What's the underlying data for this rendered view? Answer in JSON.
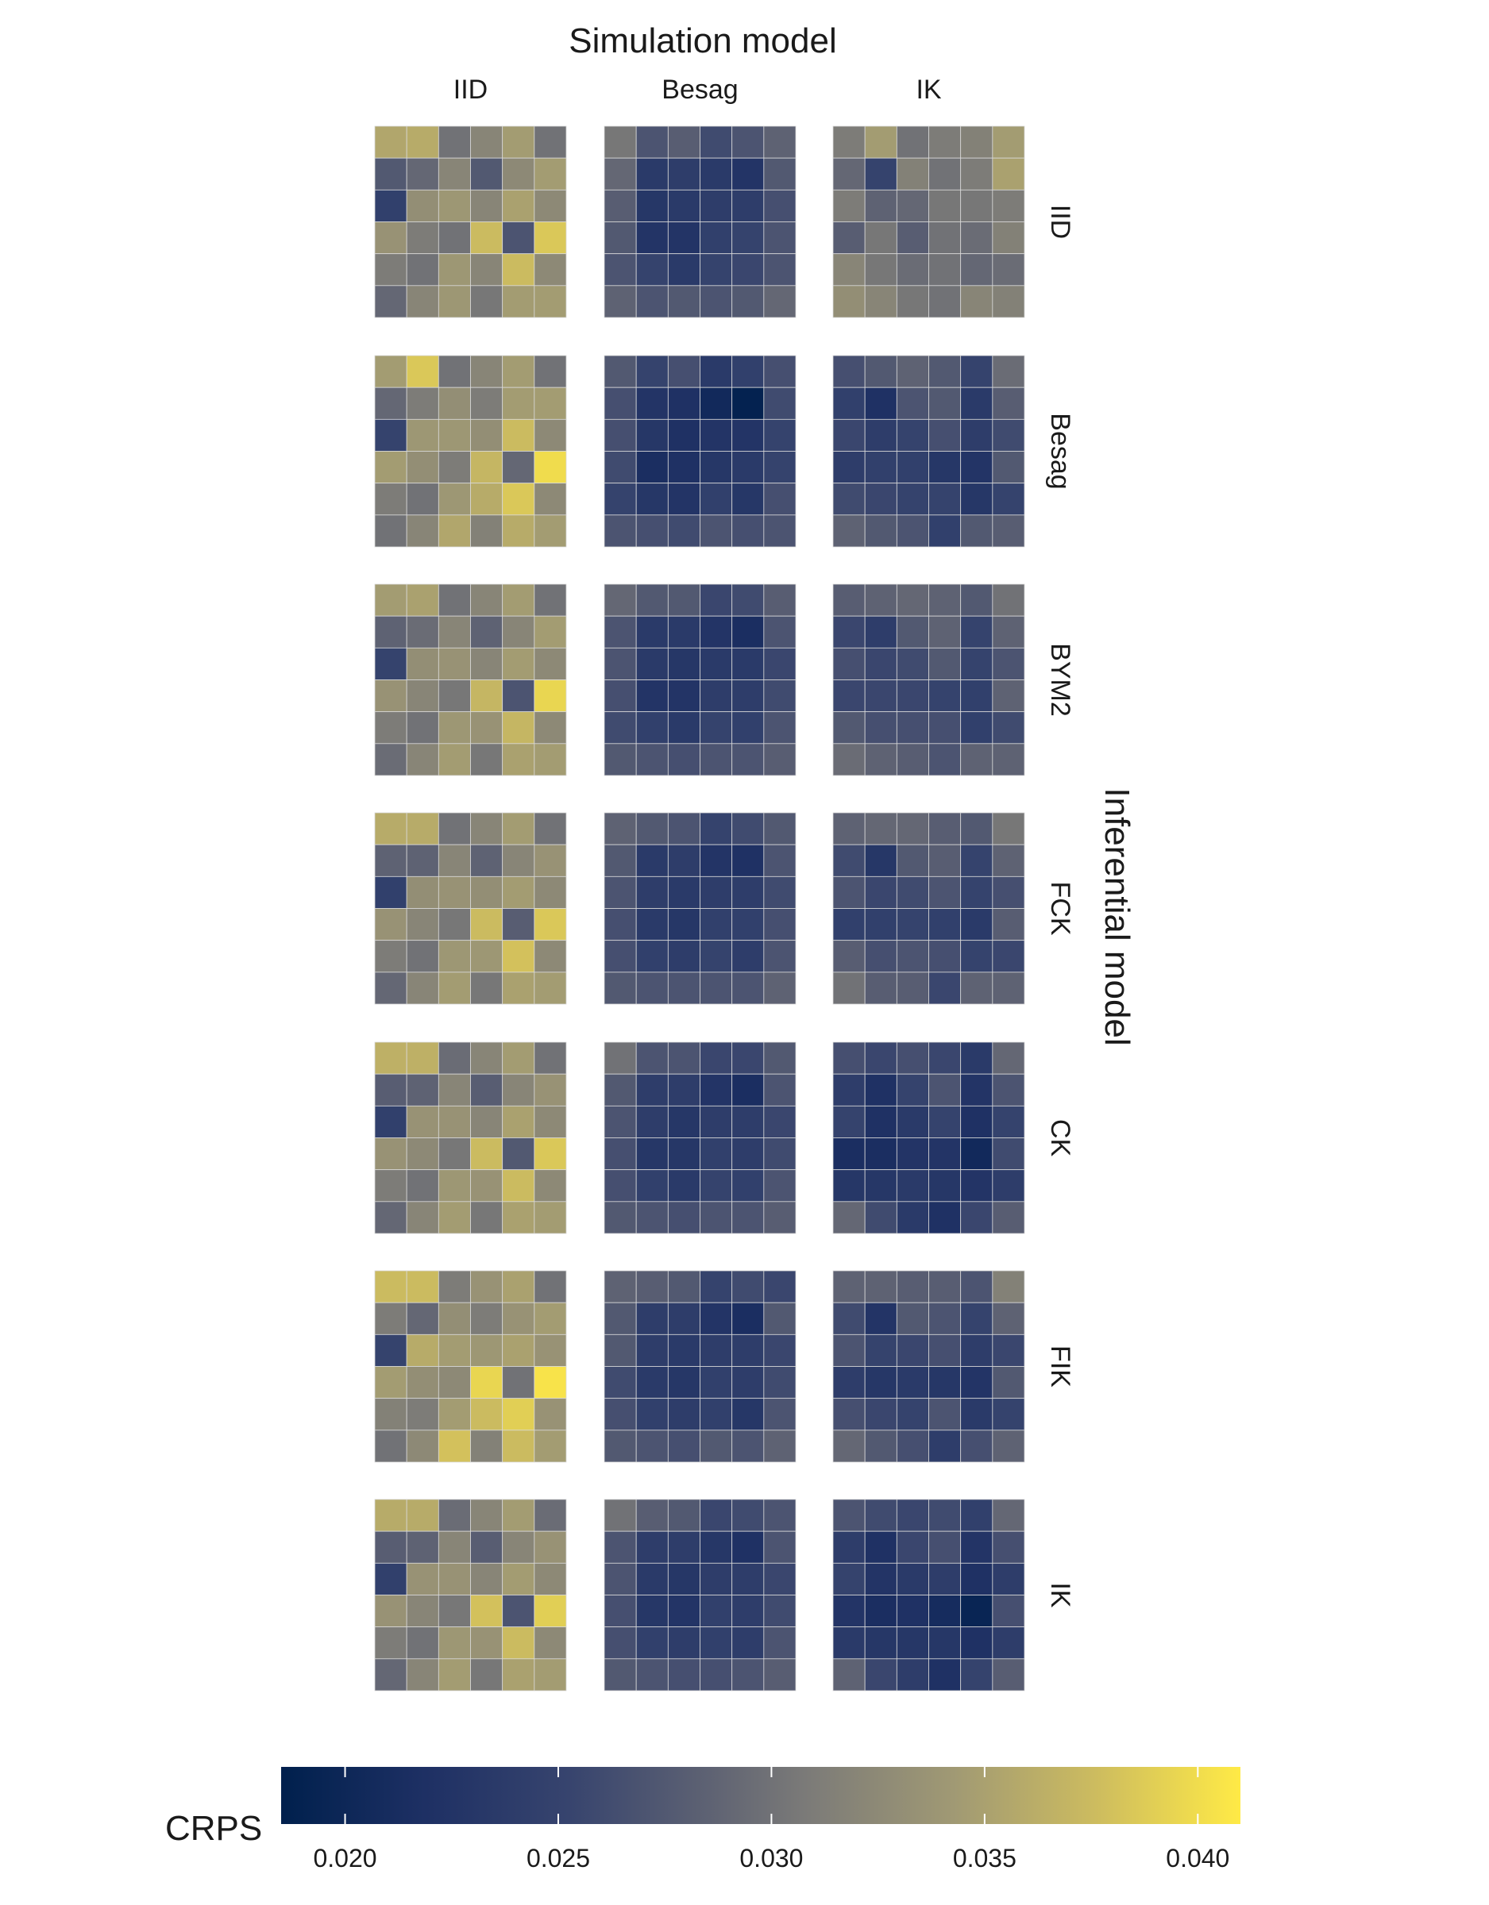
{
  "chart_data": {
    "type": "heatmap",
    "title": "Simulation model",
    "column_axis_title": "Simulation model",
    "row_axis_title": "Inferential model",
    "column_labels": [
      "IID",
      "Besag",
      "IK"
    ],
    "row_labels": [
      "IID",
      "Besag",
      "BYM2",
      "FCK",
      "CK",
      "FIK",
      "IK"
    ],
    "grid_size": [
      6,
      6
    ],
    "legend": {
      "title": "CRPS",
      "range": [
        0.0185,
        0.041
      ],
      "ticks": [
        0.02,
        0.025,
        0.03,
        0.035,
        0.04
      ],
      "tick_labels": [
        "0.020",
        "0.025",
        "0.030",
        "0.035",
        "0.040"
      ],
      "placement": "bottom",
      "colormap": "cividis"
    },
    "colors": {
      "low": "#00204d",
      "mid": "#7c7b78",
      "high": "#ffea46",
      "cell_border": "#d9d9d9"
    },
    "panels": [
      [
        [
          [
            0.0355,
            0.036,
            0.03,
            0.032,
            0.0345,
            0.03
          ],
          [
            0.0275,
            0.029,
            0.032,
            0.0275,
            0.0325,
            0.0345
          ],
          [
            0.0245,
            0.033,
            0.034,
            0.032,
            0.035,
            0.0325
          ],
          [
            0.0335,
            0.031,
            0.03,
            0.0375,
            0.027,
            0.0385
          ],
          [
            0.031,
            0.03,
            0.034,
            0.032,
            0.0375,
            0.0325
          ],
          [
            0.029,
            0.032,
            0.034,
            0.0305,
            0.0345,
            0.0345
          ]
        ],
        [
          [
            0.0305,
            0.027,
            0.028,
            0.026,
            0.027,
            0.0285
          ],
          [
            0.029,
            0.0235,
            0.024,
            0.0235,
            0.0225,
            0.0275
          ],
          [
            0.028,
            0.023,
            0.0235,
            0.024,
            0.024,
            0.0265
          ],
          [
            0.0275,
            0.0225,
            0.0225,
            0.0245,
            0.025,
            0.027
          ],
          [
            0.027,
            0.025,
            0.0235,
            0.025,
            0.0255,
            0.027
          ],
          [
            0.0285,
            0.027,
            0.0275,
            0.027,
            0.0275,
            0.029
          ]
        ],
        [
          [
            0.031,
            0.0345,
            0.03,
            0.031,
            0.0315,
            0.0345
          ],
          [
            0.029,
            0.025,
            0.0315,
            0.03,
            0.031,
            0.035
          ],
          [
            0.031,
            0.0285,
            0.029,
            0.0305,
            0.0305,
            0.031
          ],
          [
            0.028,
            0.0305,
            0.028,
            0.03,
            0.0295,
            0.0315
          ],
          [
            0.032,
            0.0305,
            0.0295,
            0.03,
            0.029,
            0.0295
          ],
          [
            0.033,
            0.032,
            0.0305,
            0.03,
            0.032,
            0.0315
          ]
        ]
      ],
      [
        [
          [
            0.0345,
            0.0385,
            0.03,
            0.032,
            0.0345,
            0.03
          ],
          [
            0.029,
            0.031,
            0.033,
            0.031,
            0.0345,
            0.0345
          ],
          [
            0.025,
            0.034,
            0.034,
            0.033,
            0.0375,
            0.0325
          ],
          [
            0.0345,
            0.033,
            0.031,
            0.037,
            0.029,
            0.04
          ],
          [
            0.031,
            0.03,
            0.034,
            0.036,
            0.0385,
            0.0325
          ],
          [
            0.03,
            0.032,
            0.0355,
            0.0315,
            0.036,
            0.0345
          ]
        ],
        [
          [
            0.0275,
            0.025,
            0.0265,
            0.0235,
            0.0245,
            0.0265
          ],
          [
            0.0265,
            0.0225,
            0.022,
            0.0205,
            0.019,
            0.026
          ],
          [
            0.0265,
            0.023,
            0.022,
            0.0225,
            0.0225,
            0.025
          ],
          [
            0.026,
            0.0215,
            0.022,
            0.023,
            0.0235,
            0.025
          ],
          [
            0.025,
            0.023,
            0.0225,
            0.0245,
            0.023,
            0.0265
          ],
          [
            0.027,
            0.0265,
            0.026,
            0.027,
            0.0265,
            0.027
          ]
        ],
        [
          [
            0.0265,
            0.0275,
            0.0285,
            0.0275,
            0.025,
            0.0295
          ],
          [
            0.0245,
            0.022,
            0.027,
            0.0275,
            0.0235,
            0.028
          ],
          [
            0.0255,
            0.024,
            0.025,
            0.0265,
            0.024,
            0.026
          ],
          [
            0.024,
            0.0245,
            0.0245,
            0.023,
            0.0225,
            0.0275
          ],
          [
            0.026,
            0.0255,
            0.025,
            0.025,
            0.023,
            0.025
          ],
          [
            0.0285,
            0.0275,
            0.027,
            0.0245,
            0.0275,
            0.028
          ]
        ]
      ],
      [
        [
          [
            0.0345,
            0.035,
            0.03,
            0.032,
            0.0345,
            0.03
          ],
          [
            0.0285,
            0.0295,
            0.032,
            0.0285,
            0.032,
            0.0345
          ],
          [
            0.025,
            0.033,
            0.0335,
            0.032,
            0.0345,
            0.0325
          ],
          [
            0.0335,
            0.032,
            0.0305,
            0.037,
            0.027,
            0.0395
          ],
          [
            0.031,
            0.03,
            0.034,
            0.0335,
            0.037,
            0.0325
          ],
          [
            0.0295,
            0.032,
            0.0345,
            0.0305,
            0.035,
            0.0345
          ]
        ],
        [
          [
            0.029,
            0.0275,
            0.0275,
            0.0255,
            0.026,
            0.028
          ],
          [
            0.027,
            0.0235,
            0.0235,
            0.0225,
            0.0215,
            0.027
          ],
          [
            0.027,
            0.0235,
            0.023,
            0.0235,
            0.0235,
            0.0255
          ],
          [
            0.0265,
            0.0225,
            0.0225,
            0.024,
            0.024,
            0.026
          ],
          [
            0.026,
            0.0245,
            0.0235,
            0.025,
            0.0245,
            0.027
          ],
          [
            0.0275,
            0.027,
            0.0265,
            0.027,
            0.027,
            0.028
          ]
        ],
        [
          [
            0.028,
            0.0285,
            0.029,
            0.0285,
            0.0275,
            0.03
          ],
          [
            0.0255,
            0.024,
            0.0275,
            0.0285,
            0.025,
            0.0285
          ],
          [
            0.0265,
            0.0255,
            0.026,
            0.0275,
            0.025,
            0.027
          ],
          [
            0.0255,
            0.0255,
            0.0255,
            0.025,
            0.0245,
            0.0285
          ],
          [
            0.0275,
            0.0265,
            0.0265,
            0.0265,
            0.0245,
            0.026
          ],
          [
            0.0295,
            0.0285,
            0.028,
            0.027,
            0.0285,
            0.0285
          ]
        ]
      ],
      [
        [
          [
            0.036,
            0.036,
            0.03,
            0.032,
            0.0345,
            0.03
          ],
          [
            0.0285,
            0.0285,
            0.032,
            0.0285,
            0.032,
            0.0335
          ],
          [
            0.0245,
            0.033,
            0.0335,
            0.033,
            0.0345,
            0.0325
          ],
          [
            0.0335,
            0.032,
            0.0305,
            0.0375,
            0.028,
            0.0385
          ],
          [
            0.031,
            0.03,
            0.034,
            0.034,
            0.038,
            0.0325
          ],
          [
            0.029,
            0.032,
            0.0345,
            0.0305,
            0.035,
            0.0345
          ]
        ],
        [
          [
            0.0285,
            0.0275,
            0.027,
            0.025,
            0.026,
            0.0275
          ],
          [
            0.0275,
            0.0235,
            0.024,
            0.0225,
            0.022,
            0.027
          ],
          [
            0.027,
            0.024,
            0.0235,
            0.024,
            0.024,
            0.026
          ],
          [
            0.0265,
            0.0235,
            0.023,
            0.0245,
            0.0245,
            0.0265
          ],
          [
            0.0265,
            0.0245,
            0.024,
            0.025,
            0.024,
            0.027
          ],
          [
            0.0275,
            0.027,
            0.027,
            0.027,
            0.027,
            0.0285
          ]
        ],
        [
          [
            0.0285,
            0.029,
            0.029,
            0.028,
            0.0275,
            0.0305
          ],
          [
            0.026,
            0.023,
            0.0275,
            0.028,
            0.025,
            0.0285
          ],
          [
            0.027,
            0.0255,
            0.026,
            0.027,
            0.025,
            0.0265
          ],
          [
            0.0245,
            0.0245,
            0.025,
            0.0245,
            0.0235,
            0.028
          ],
          [
            0.028,
            0.0265,
            0.027,
            0.0265,
            0.025,
            0.0255
          ],
          [
            0.03,
            0.028,
            0.028,
            0.0255,
            0.0285,
            0.0285
          ]
        ]
      ],
      [
        [
          [
            0.0365,
            0.0365,
            0.0295,
            0.032,
            0.0345,
            0.03
          ],
          [
            0.028,
            0.0285,
            0.032,
            0.028,
            0.032,
            0.0335
          ],
          [
            0.0245,
            0.0335,
            0.0335,
            0.032,
            0.035,
            0.0325
          ],
          [
            0.0335,
            0.0325,
            0.0305,
            0.0375,
            0.0275,
            0.0385
          ],
          [
            0.031,
            0.03,
            0.034,
            0.0335,
            0.0375,
            0.0325
          ],
          [
            0.029,
            0.032,
            0.0345,
            0.0305,
            0.035,
            0.0345
          ]
        ],
        [
          [
            0.03,
            0.027,
            0.027,
            0.0255,
            0.0255,
            0.0275
          ],
          [
            0.0275,
            0.024,
            0.024,
            0.0225,
            0.0215,
            0.027
          ],
          [
            0.027,
            0.024,
            0.023,
            0.024,
            0.024,
            0.0255
          ],
          [
            0.0265,
            0.023,
            0.023,
            0.0245,
            0.024,
            0.026
          ],
          [
            0.0265,
            0.0245,
            0.0235,
            0.025,
            0.0245,
            0.027
          ],
          [
            0.0275,
            0.027,
            0.0265,
            0.027,
            0.027,
            0.028
          ]
        ],
        [
          [
            0.0265,
            0.0255,
            0.0265,
            0.0255,
            0.0235,
            0.029
          ],
          [
            0.024,
            0.022,
            0.025,
            0.027,
            0.0225,
            0.027
          ],
          [
            0.025,
            0.022,
            0.0235,
            0.025,
            0.022,
            0.025
          ],
          [
            0.0215,
            0.0215,
            0.0225,
            0.0225,
            0.0205,
            0.026
          ],
          [
            0.023,
            0.023,
            0.0235,
            0.023,
            0.0225,
            0.024
          ],
          [
            0.029,
            0.026,
            0.0235,
            0.022,
            0.0255,
            0.028
          ]
        ]
      ],
      [
        [
          [
            0.0375,
            0.0375,
            0.031,
            0.0335,
            0.035,
            0.03
          ],
          [
            0.031,
            0.029,
            0.033,
            0.031,
            0.0335,
            0.0345
          ],
          [
            0.025,
            0.036,
            0.0345,
            0.034,
            0.035,
            0.0335
          ],
          [
            0.0345,
            0.033,
            0.0325,
            0.0395,
            0.03,
            0.0405
          ],
          [
            0.0315,
            0.031,
            0.0345,
            0.0375,
            0.039,
            0.0335
          ],
          [
            0.03,
            0.0325,
            0.038,
            0.0315,
            0.0375,
            0.0345
          ]
        ],
        [
          [
            0.0285,
            0.028,
            0.0275,
            0.025,
            0.026,
            0.0255
          ],
          [
            0.0275,
            0.024,
            0.024,
            0.0225,
            0.0215,
            0.0275
          ],
          [
            0.0275,
            0.024,
            0.0235,
            0.024,
            0.024,
            0.0255
          ],
          [
            0.026,
            0.0235,
            0.023,
            0.0245,
            0.024,
            0.026
          ],
          [
            0.0265,
            0.0245,
            0.024,
            0.0245,
            0.023,
            0.027
          ],
          [
            0.0275,
            0.027,
            0.0265,
            0.0275,
            0.027,
            0.0285
          ]
        ],
        [
          [
            0.0285,
            0.0285,
            0.028,
            0.028,
            0.027,
            0.0315
          ],
          [
            0.026,
            0.0225,
            0.0275,
            0.027,
            0.025,
            0.0285
          ],
          [
            0.027,
            0.025,
            0.0255,
            0.0265,
            0.024,
            0.0255
          ],
          [
            0.024,
            0.023,
            0.0235,
            0.023,
            0.0225,
            0.0275
          ],
          [
            0.0265,
            0.0255,
            0.025,
            0.027,
            0.0235,
            0.025
          ],
          [
            0.029,
            0.0275,
            0.0265,
            0.024,
            0.0265,
            0.0285
          ]
        ]
      ],
      [
        [
          [
            0.036,
            0.036,
            0.0295,
            0.032,
            0.0345,
            0.0295
          ],
          [
            0.028,
            0.0285,
            0.032,
            0.028,
            0.032,
            0.0335
          ],
          [
            0.0245,
            0.0335,
            0.0335,
            0.032,
            0.0345,
            0.0325
          ],
          [
            0.0335,
            0.032,
            0.0305,
            0.038,
            0.027,
            0.039
          ],
          [
            0.031,
            0.03,
            0.034,
            0.0335,
            0.0375,
            0.0325
          ],
          [
            0.029,
            0.032,
            0.0345,
            0.0305,
            0.035,
            0.0345
          ]
        ],
        [
          [
            0.03,
            0.028,
            0.0275,
            0.0255,
            0.026,
            0.027
          ],
          [
            0.027,
            0.024,
            0.024,
            0.023,
            0.022,
            0.027
          ],
          [
            0.027,
            0.0235,
            0.023,
            0.024,
            0.024,
            0.0255
          ],
          [
            0.0265,
            0.023,
            0.0225,
            0.0245,
            0.024,
            0.026
          ],
          [
            0.0265,
            0.0245,
            0.024,
            0.0245,
            0.024,
            0.027
          ],
          [
            0.0275,
            0.027,
            0.0265,
            0.0265,
            0.027,
            0.028
          ]
        ],
        [
          [
            0.027,
            0.026,
            0.0255,
            0.026,
            0.0245,
            0.029
          ],
          [
            0.024,
            0.022,
            0.0255,
            0.0265,
            0.0225,
            0.0265
          ],
          [
            0.025,
            0.0225,
            0.0235,
            0.024,
            0.022,
            0.024
          ],
          [
            0.0225,
            0.0215,
            0.022,
            0.021,
            0.0195,
            0.0265
          ],
          [
            0.0235,
            0.023,
            0.023,
            0.023,
            0.022,
            0.024
          ],
          [
            0.0285,
            0.0255,
            0.024,
            0.022,
            0.025,
            0.028
          ]
        ]
      ]
    ]
  }
}
